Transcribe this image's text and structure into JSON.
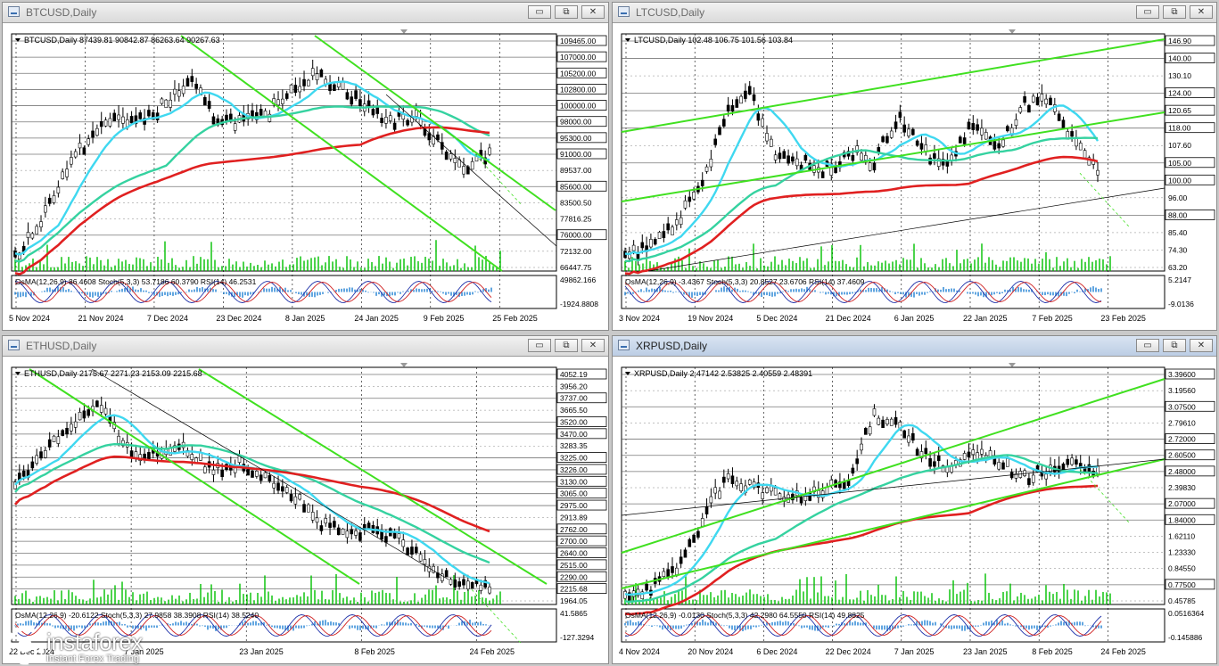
{
  "windows": [
    {
      "id": "btcusd",
      "title": "BTCUSD,Daily",
      "header": "BTCUSD,Daily  87439.81 90842.87 86263.64 90267.63",
      "indicator": "OsMA(12,26,9) 86.4608  Stoch(5,3,3) 53.7186 60.3790  RSI(14) 46.2531",
      "osc_labels": [
        "49862.166",
        "-1924.8808"
      ],
      "price_labels": [
        "109465.00",
        "107000.00",
        "105200.00",
        "102800.00",
        "100000.00",
        "98000.00",
        "95300.00",
        "91000.00",
        "89537.00",
        "85600.00",
        "83500.50",
        "77816.25",
        "76000.00",
        "72132.00",
        "66447.75"
      ],
      "price_highlight": [
        "109465.00",
        "107000.00",
        "105200.00",
        "102800.00",
        "100000.00",
        "98000.00",
        "95300.00",
        "91000.00",
        "85600.00",
        "76000.00"
      ],
      "dates": [
        "5 Nov 2024",
        "21 Nov 2024",
        "7 Dec 2024",
        "23 Dec 2024",
        "8 Jan 2025",
        "24 Jan 2025",
        "9 Feb 2025",
        "25 Feb 2025"
      ]
    },
    {
      "id": "ltcusd",
      "title": "LTCUSD,Daily",
      "header": "LTCUSD,Daily  102.48 106.75 101.56 103.84",
      "indicator": "OsMA(12,26,9) -3.4367  Stoch(5,3,3) 20.8527 23.6706  RSI(14) 37.4609",
      "osc_labels": [
        "5.2147",
        "-9.0136"
      ],
      "price_labels": [
        "146.90",
        "140.00",
        "130.10",
        "124.00",
        "120.65",
        "118.00",
        "107.60",
        "105.00",
        "100.00",
        "96.00",
        "88.00",
        "85.40",
        "74.30",
        "63.20"
      ],
      "price_highlight": [
        "146.90",
        "140.00",
        "124.00",
        "120.65",
        "118.00",
        "105.00",
        "100.00",
        "88.00"
      ],
      "dates": [
        "3 Nov 2024",
        "19 Nov 2024",
        "5 Dec 2024",
        "21 Dec 2024",
        "6 Jan 2025",
        "22 Jan 2025",
        "7 Feb 2025",
        "23 Feb 2025"
      ]
    },
    {
      "id": "ethusd",
      "title": "ETHUSD,Daily",
      "header": "ETHUSD,Daily  2175.67 2271.23 2153.09 2215.68",
      "indicator": "OsMA(12,26,9) -20.6122  Stoch(5,3,3) 27.9858 38.3908  RSI(14) 38.5240",
      "osc_labels": [
        "41.5865",
        "-127.3294"
      ],
      "price_labels": [
        "4052.19",
        "3956.20",
        "3737.00",
        "3665.50",
        "3520.00",
        "3470.00",
        "3283.35",
        "3225.00",
        "3226.00",
        "3130.00",
        "3065.00",
        "2975.00",
        "2913.89",
        "2762.00",
        "2700.00",
        "2640.00",
        "2515.00",
        "2290.00",
        "2215.68",
        "1964.05"
      ],
      "price_highlight": [
        "4052.19",
        "3737.00",
        "3520.00",
        "3470.00",
        "3225.00",
        "3226.00",
        "3130.00",
        "3065.00",
        "2975.00",
        "2762.00",
        "2700.00",
        "2640.00",
        "2515.00",
        "2290.00",
        "2215.68"
      ],
      "dates": [
        "22 Dec 2024",
        "7 Jan 2025",
        "23 Jan 2025",
        "8 Feb 2025",
        "24 Feb 2025"
      ]
    },
    {
      "id": "xrpusd",
      "title": "XRPUSD,Daily",
      "header": "XRPUSD,Daily  2.47142 2.53825 2.40559 2.48391",
      "indicator": "OsMA(12,26,9) -0.0130  Stoch(5,3,3) 42.2980 64.5550  RSI(14) 49.8825",
      "osc_labels": [
        "0.0516364",
        "-0.145886"
      ],
      "price_labels": [
        "3.39600",
        "3.19560",
        "3.07500",
        "2.79610",
        "2.72000",
        "2.60500",
        "2.48000",
        "2.39830",
        "2.07000",
        "1.84000",
        "1.62110",
        "1.23330",
        "0.84550",
        "0.77500",
        "0.45785"
      ],
      "price_highlight": [
        "3.39600",
        "3.07500",
        "2.72000",
        "2.60500",
        "2.48000",
        "2.07000",
        "1.84000",
        "0.77500"
      ],
      "dates": [
        "4 Nov 2024",
        "20 Nov 2024",
        "6 Dec 2024",
        "22 Dec 2024",
        "7 Jan 2025",
        "23 Jan 2025",
        "8 Feb 2025",
        "24 Feb 2025"
      ]
    }
  ],
  "buttons": {
    "minimize": "▭",
    "restore": "⧉",
    "close": "✕"
  },
  "logo": {
    "name": "instaforex",
    "tagline": "Instant Forex Trading"
  },
  "colors": {
    "ma_fast": "#3fd8f0",
    "ma_mid": "#35d2a0",
    "ma_slow": "#e02020",
    "trend": "#40e020"
  }
}
